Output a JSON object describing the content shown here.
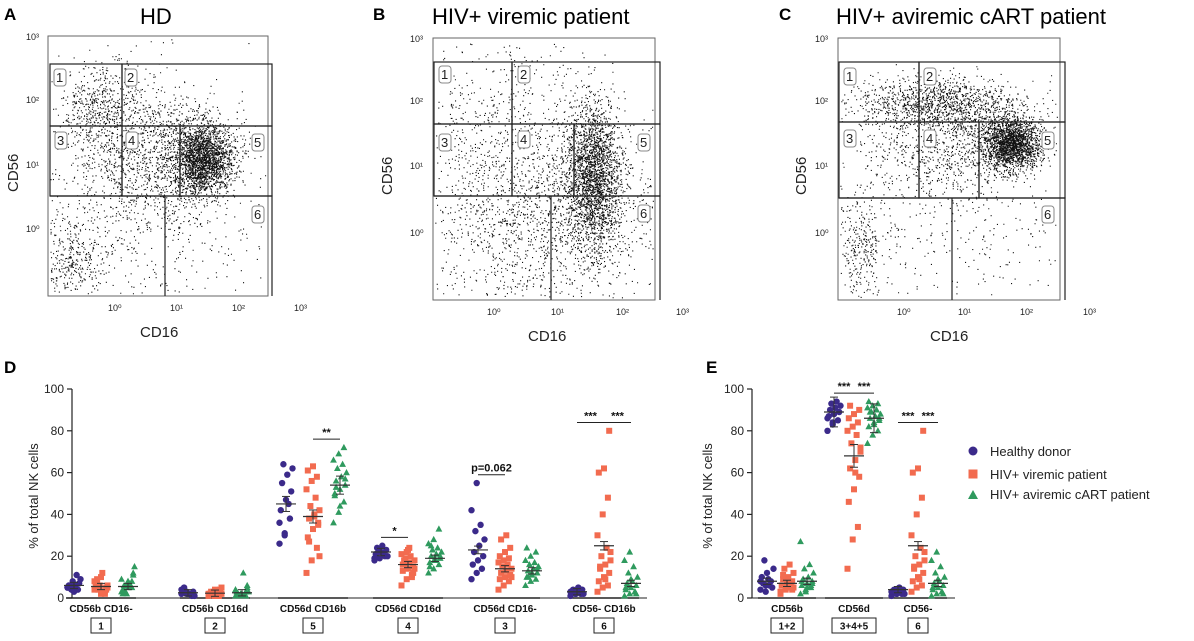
{
  "colors": {
    "healthy": "#3b2a8a",
    "viremic": "#f26b4f",
    "aviremic": "#2f9a5e",
    "ylabel_cd56": "#6a2a5a"
  },
  "flow_panels": [
    {
      "letter": "A",
      "title": "HD",
      "xlabel": "CD16",
      "ylabel": "CD56",
      "gate_labels": [
        "1",
        "2",
        "3",
        "4",
        "5",
        "6"
      ],
      "xticks": [
        "10⁰",
        "10¹",
        "10²",
        "10³"
      ],
      "yticks": [
        "10³",
        "10²",
        "10¹",
        "10⁰"
      ]
    },
    {
      "letter": "B",
      "title": "HIV+ viremic patient",
      "xlabel": "CD16",
      "ylabel": "CD56",
      "gate_labels": [
        "1",
        "2",
        "3",
        "4",
        "5",
        "6"
      ],
      "xticks": [
        "10⁰",
        "10¹",
        "10²",
        "10³"
      ],
      "yticks": [
        "10³",
        "10²",
        "10¹",
        "10⁰"
      ]
    },
    {
      "letter": "C",
      "title": "HIV+ aviremic cART patient",
      "xlabel": "CD16",
      "ylabel": "CD56",
      "gate_labels": [
        "1",
        "2",
        "3",
        "4",
        "5",
        "6"
      ],
      "xticks": [
        "10⁰",
        "10¹",
        "10²",
        "10³"
      ],
      "yticks": [
        "10³",
        "10²",
        "10¹",
        "10⁰"
      ]
    }
  ],
  "chart_data": [
    {
      "type": "scatter",
      "panel": "D",
      "ylabel": "% of total NK cells",
      "ylim": [
        0,
        100
      ],
      "yticks": [
        0,
        20,
        40,
        60,
        80,
        100
      ],
      "series_names": [
        "Healthy donor",
        "HIV+ viremic patient",
        "HIV+ aviremic cART patient"
      ],
      "categories": [
        {
          "label": "CD56b CD16-",
          "gate": "1",
          "values": [
            [
              5,
              8,
              4,
              6,
              3,
              7,
              5,
              6,
              9,
              4,
              11,
              5,
              6
            ],
            [
              4,
              6,
              3,
              7,
              2,
              5,
              9,
              12,
              6,
              4,
              3,
              8,
              5,
              2,
              6,
              10,
              4,
              7,
              3,
              5
            ],
            [
              3,
              6,
              8,
              2,
              5,
              12,
              4,
              7,
              15,
              3,
              6,
              9,
              2,
              5,
              4,
              8,
              11,
              6
            ]
          ],
          "means": [
            6,
            5.5,
            5.5
          ]
        },
        {
          "label": "CD56b CD16d",
          "gate": "2",
          "values": [
            [
              2,
              3,
              1,
              4,
              2,
              3,
              5,
              2,
              1,
              3,
              2,
              4,
              2
            ],
            [
              1,
              2,
              3,
              2,
              1,
              4,
              2,
              3,
              5,
              2,
              1,
              2,
              3,
              1,
              2,
              4,
              2,
              3,
              1,
              2
            ],
            [
              1,
              2,
              3,
              2,
              1,
              5,
              2,
              12,
              3,
              1,
              2,
              4,
              2,
              1,
              3,
              2,
              6,
              2
            ]
          ],
          "means": [
            2.5,
            2.3,
            2.5
          ]
        },
        {
          "label": "CD56d CD16b",
          "gate": "5",
          "values": [
            [
              26,
              31,
              38,
              42,
              47,
              51,
              55,
              59,
              62,
              64,
              45,
              36,
              30
            ],
            [
              12,
              18,
              24,
              29,
              33,
              36,
              38,
              40,
              42,
              44,
              48,
              52,
              56,
              58,
              61,
              63,
              35,
              27,
              39,
              20
            ],
            [
              36,
              41,
              46,
              49,
              52,
              54,
              56,
              58,
              60,
              62,
              64,
              66,
              69,
              72,
              50,
              44,
              57,
              53
            ]
          ],
          "means": [
            45,
            39,
            54
          ]
        },
        {
          "label": "CD56d CD16d",
          "gate": "4",
          "values": [
            [
              18,
              19,
              20,
              21,
              22,
              23,
              24,
              25,
              20,
              22,
              21,
              19,
              23
            ],
            [
              6,
              9,
              11,
              13,
              14,
              15,
              16,
              17,
              18,
              19,
              20,
              21,
              22,
              10,
              16,
              23,
              12,
              18,
              24,
              14
            ],
            [
              12,
              14,
              16,
              17,
              18,
              19,
              20,
              21,
              22,
              23,
              24,
              26,
              28,
              33,
              15,
              19,
              20,
              25
            ]
          ],
          "means": [
            22,
            16,
            19
          ]
        },
        {
          "label": "CD56d CD16-",
          "gate": "3",
          "values": [
            [
              9,
              12,
              14,
              16,
              18,
              20,
              22,
              25,
              28,
              32,
              35,
              42,
              55
            ],
            [
              4,
              6,
              8,
              9,
              10,
              11,
              12,
              13,
              14,
              15,
              16,
              17,
              18,
              19,
              20,
              22,
              24,
              28,
              30,
              10
            ],
            [
              6,
              8,
              9,
              10,
              11,
              12,
              13,
              14,
              15,
              16,
              17,
              18,
              20,
              22,
              24,
              12,
              14,
              10
            ]
          ],
          "means": [
            23,
            14,
            13
          ]
        },
        {
          "label": "CD56- CD16b",
          "gate": "6",
          "values": [
            [
              1,
              2,
              2,
              3,
              3,
              4,
              4,
              5,
              2,
              3,
              4,
              3,
              2
            ],
            [
              3,
              5,
              6,
              8,
              10,
              12,
              14,
              16,
              18,
              20,
              24,
              30,
              40,
              48,
              60,
              62,
              80,
              15,
              9,
              22
            ],
            [
              1,
              2,
              3,
              4,
              5,
              6,
              7,
              8,
              10,
              12,
              15,
              18,
              22,
              3,
              5,
              9,
              2,
              6
            ]
          ],
          "means": [
            3,
            25,
            7
          ]
        }
      ],
      "significance": [
        {
          "category": 2,
          "from": 1,
          "to": 2,
          "label": "**"
        },
        {
          "category": 3,
          "from": 0,
          "to": 1,
          "label": "*"
        },
        {
          "category": 4,
          "from": 0,
          "to": 1,
          "label": "p=0.062"
        },
        {
          "category": 5,
          "from": 0,
          "to": 1,
          "label": "***"
        },
        {
          "category": 5,
          "from": 1,
          "to": 2,
          "label": "***"
        }
      ]
    },
    {
      "type": "scatter",
      "panel": "E",
      "ylabel": "% of total NK cells",
      "ylim": [
        0,
        100
      ],
      "yticks": [
        0,
        20,
        40,
        60,
        80,
        100
      ],
      "series_names": [
        "Healthy donor",
        "HIV+ viremic patient",
        "HIV+ aviremic cART patient"
      ],
      "categories": [
        {
          "label": "CD56b",
          "gate": "1+2",
          "values": [
            [
              4,
              6,
              8,
              10,
              12,
              5,
              7,
              9,
              14,
              18,
              6,
              8,
              3
            ],
            [
              2,
              4,
              5,
              6,
              7,
              8,
              9,
              10,
              12,
              14,
              16,
              3,
              5,
              7,
              6,
              9,
              4,
              11,
              8,
              5
            ],
            [
              2,
              4,
              5,
              6,
              7,
              8,
              9,
              10,
              12,
              14,
              16,
              27,
              3,
              6,
              8,
              5,
              7,
              9
            ]
          ],
          "means": [
            8,
            7,
            8
          ]
        },
        {
          "label": "CD56d",
          "gate": "3+4+5",
          "values": [
            [
              80,
              83,
              85,
              87,
              88,
              89,
              90,
              91,
              92,
              93,
              94,
              86,
              84
            ],
            [
              14,
              28,
              34,
              46,
              52,
              58,
              62,
              66,
              70,
              74,
              78,
              80,
              82,
              84,
              86,
              88,
              90,
              92,
              60,
              72
            ],
            [
              74,
              78,
              80,
              82,
              84,
              85,
              86,
              87,
              88,
              89,
              90,
              91,
              92,
              93,
              94,
              83,
              86,
              89
            ]
          ],
          "means": [
            89,
            68,
            86
          ]
        },
        {
          "label": "CD56-",
          "gate": "6",
          "values": [
            [
              1,
              2,
              2,
              3,
              3,
              4,
              4,
              5,
              2,
              3,
              4,
              3,
              2
            ],
            [
              3,
              5,
              6,
              8,
              10,
              12,
              14,
              16,
              18,
              20,
              24,
              30,
              40,
              48,
              60,
              62,
              80,
              15,
              9,
              22
            ],
            [
              1,
              2,
              3,
              4,
              5,
              6,
              7,
              8,
              10,
              12,
              15,
              18,
              22,
              3,
              5,
              9,
              2,
              6
            ]
          ],
          "means": [
            4,
            25,
            7
          ]
        }
      ],
      "significance": [
        {
          "category": 1,
          "from": 0,
          "to": 1,
          "label": "***"
        },
        {
          "category": 1,
          "from": 1,
          "to": 2,
          "label": "***"
        },
        {
          "category": 2,
          "from": 0,
          "to": 1,
          "label": "***"
        },
        {
          "category": 2,
          "from": 1,
          "to": 2,
          "label": "***"
        }
      ]
    }
  ],
  "panel_letters": {
    "d": "D",
    "e": "E"
  },
  "legend": [
    "Healthy donor",
    "HIV+ viremic patient",
    "HIV+ aviremic cART patient"
  ]
}
